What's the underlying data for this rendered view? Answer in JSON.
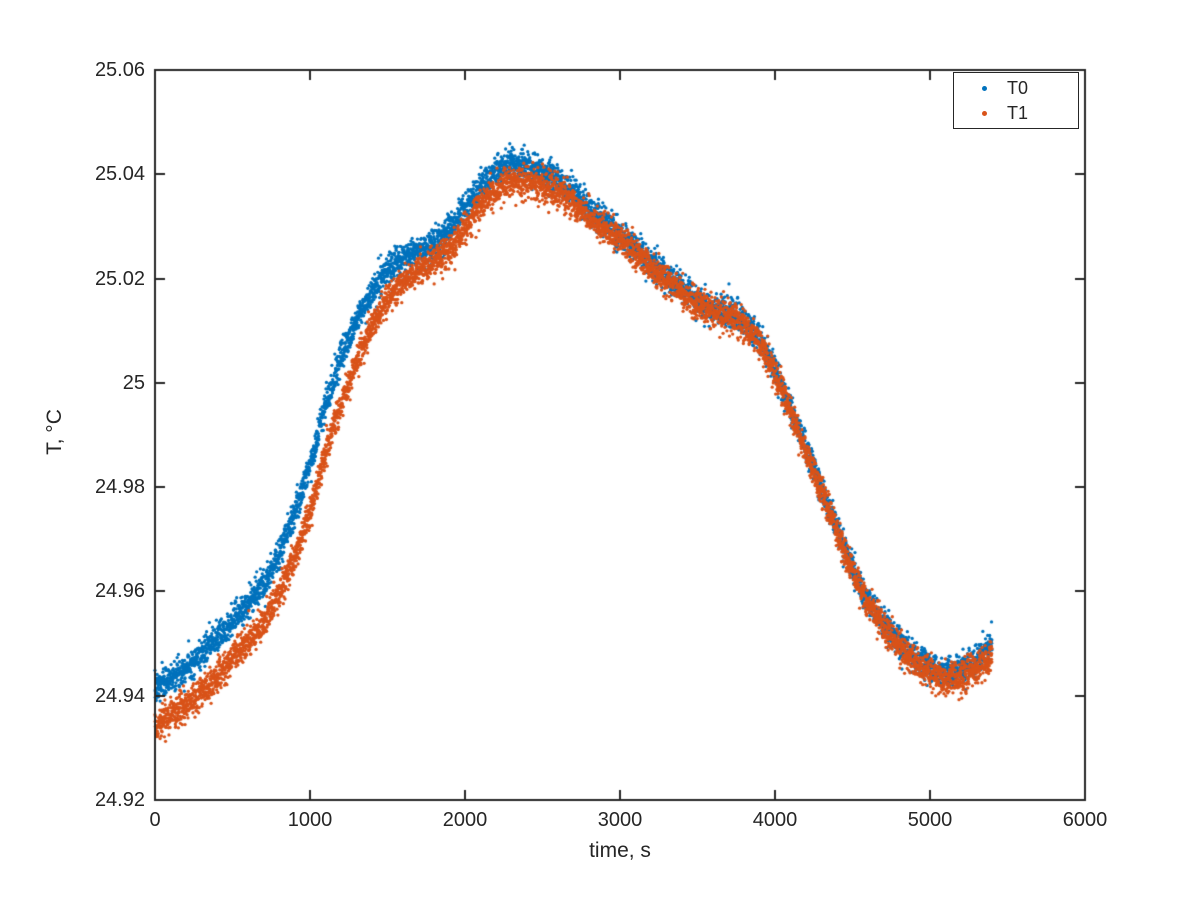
{
  "figure": {
    "background": "#ffffff",
    "axes_color": "#262626",
    "text_color": "#262626"
  },
  "chart_data": {
    "type": "scatter",
    "title": "",
    "xlabel": "time, s",
    "ylabel": "T, °C",
    "xlim": [
      0,
      6000
    ],
    "ylim": [
      24.92,
      25.06
    ],
    "grid": false,
    "xtick_values": [
      0,
      1000,
      2000,
      3000,
      4000,
      5000,
      6000
    ],
    "xtick_labels": [
      "0",
      "1000",
      "2000",
      "3000",
      "4000",
      "5000",
      "6000"
    ],
    "ytick_values": [
      24.92,
      24.94,
      24.96,
      24.98,
      25,
      25.02,
      25.04,
      25.06
    ],
    "ytick_labels": [
      "24.92",
      "24.94",
      "24.96",
      "24.98",
      "25",
      "25.02",
      "25.04",
      "25.06"
    ],
    "legend": {
      "position": "northeast",
      "entries": [
        {
          "label": "T0",
          "color": "#0072BD"
        },
        {
          "label": "T1",
          "color": "#D95319"
        }
      ]
    },
    "sampling": {
      "t_start_s": 0,
      "t_end_s": 5400,
      "interval_s": 1,
      "anchor_step_s": 100,
      "noise_std_C": [
        0.0014,
        0.0015
      ],
      "marker_diameter_px": 3.3
    },
    "series": [
      {
        "name": "T0",
        "color": "#0072BD",
        "anchors_T": [
          24.941,
          24.9435,
          24.9455,
          24.948,
          24.951,
          24.9545,
          24.9575,
          24.9615,
          24.967,
          24.9745,
          24.9845,
          24.9955,
          25.005,
          25.012,
          25.0175,
          25.0215,
          25.024,
          25.0255,
          25.027,
          25.0295,
          25.0335,
          25.0375,
          25.0405,
          25.042,
          25.0415,
          25.0405,
          25.039,
          25.0365,
          25.0335,
          25.031,
          25.0285,
          25.026,
          25.023,
          25.0205,
          25.018,
          25.016,
          25.0145,
          25.0135,
          25.012,
          25.0085,
          25.0025,
          24.995,
          24.9875,
          24.98,
          24.972,
          24.9645,
          24.9585,
          24.954,
          24.9505,
          24.9475,
          24.9455,
          24.9445,
          24.945,
          24.947,
          24.95
        ]
      },
      {
        "name": "T1",
        "color": "#D95319",
        "anchors_T": [
          24.9335,
          24.936,
          24.938,
          24.9405,
          24.9435,
          24.9475,
          24.95,
          24.954,
          24.9595,
          24.966,
          24.9755,
          24.9865,
          24.996,
          25.004,
          25.011,
          25.016,
          25.0195,
          25.0215,
          25.023,
          25.0255,
          25.0295,
          25.034,
          25.037,
          25.0385,
          25.0385,
          25.038,
          25.0365,
          25.0345,
          25.0318,
          25.0295,
          25.0275,
          25.025,
          25.0222,
          25.0198,
          25.0173,
          25.0152,
          25.0138,
          25.0128,
          25.0112,
          25.0078,
          25.0018,
          24.9942,
          24.9868,
          24.9792,
          24.9712,
          24.9638,
          24.9578,
          24.9532,
          24.9495,
          24.9463,
          24.9443,
          24.9432,
          24.9437,
          24.9452,
          24.9478
        ]
      }
    ]
  }
}
